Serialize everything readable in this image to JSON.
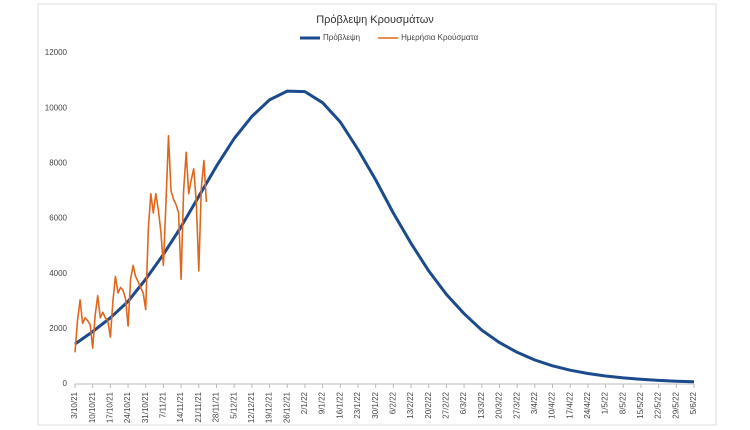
{
  "chart_data": {
    "type": "line",
    "title": "Πρόβλεψη Κρουσμάτων",
    "xlim": [
      "3/10/21",
      "5/6/22"
    ],
    "xticks": [
      "3/10/21",
      "10/10/21",
      "17/10/21",
      "24/10/21",
      "31/10/21",
      "7/11/21",
      "14/11/21",
      "21/11/21",
      "28/11/21",
      "5/12/21",
      "12/12/21",
      "19/12/21",
      "26/12/21",
      "2/1/22",
      "9/1/22",
      "16/1/22",
      "23/1/22",
      "30/1/22",
      "6/2/22",
      "13/2/22",
      "20/2/22",
      "27/2/22",
      "6/3/22",
      "13/3/22",
      "20/3/22",
      "27/3/22",
      "3/4/22",
      "10/4/22",
      "17/4/22",
      "24/4/22",
      "1/5/22",
      "8/5/22",
      "15/5/22",
      "22/5/22",
      "29/5/22",
      "5/6/22"
    ],
    "ylim": [
      0,
      12000
    ],
    "yticks": [
      0,
      2000,
      4000,
      6000,
      8000,
      10000,
      12000
    ],
    "grid": false,
    "legend": "top",
    "series": [
      {
        "name": "Πρόβλεψη",
        "color": "#1b4b8c",
        "width": 3,
        "x": [
          "3/10/21",
          "10/10/21",
          "17/10/21",
          "24/10/21",
          "31/10/21",
          "7/11/21",
          "14/11/21",
          "21/11/21",
          "28/11/21",
          "5/12/21",
          "12/12/21",
          "19/12/21",
          "26/12/21",
          "2/1/22",
          "9/1/22",
          "16/1/22",
          "23/1/22",
          "30/1/22",
          "6/2/22",
          "13/2/22",
          "20/2/22",
          "27/2/22",
          "6/3/22",
          "13/3/22",
          "20/3/22",
          "27/3/22",
          "3/4/22",
          "10/4/22",
          "17/4/22",
          "24/4/22",
          "1/5/22",
          "8/5/22",
          "15/5/22",
          "22/5/22",
          "29/5/22",
          "5/6/22"
        ],
        "values": [
          1450,
          1900,
          2400,
          3000,
          3800,
          4700,
          5700,
          6800,
          7900,
          8900,
          9700,
          10300,
          10620,
          10600,
          10200,
          9500,
          8500,
          7400,
          6200,
          5100,
          4100,
          3250,
          2550,
          1950,
          1500,
          1150,
          870,
          660,
          500,
          380,
          290,
          220,
          170,
          130,
          100,
          80
        ]
      },
      {
        "name": "Ημερήσια Κρούσματα",
        "color": "#e0661b",
        "width": 1.6,
        "x": [
          "3/10/21",
          "4/10/21",
          "5/10/21",
          "6/10/21",
          "7/10/21",
          "8/10/21",
          "9/10/21",
          "10/10/21",
          "11/10/21",
          "12/10/21",
          "13/10/21",
          "14/10/21",
          "15/10/21",
          "16/10/21",
          "17/10/21",
          "18/10/21",
          "19/10/21",
          "20/10/21",
          "21/10/21",
          "22/10/21",
          "23/10/21",
          "24/10/21",
          "25/10/21",
          "26/10/21",
          "27/10/21",
          "28/10/21",
          "29/10/21",
          "30/10/21",
          "31/10/21",
          "1/11/21",
          "2/11/21",
          "3/11/21",
          "4/11/21",
          "5/11/21",
          "6/11/21",
          "7/11/21",
          "8/11/21",
          "9/11/21",
          "10/11/21",
          "11/11/21",
          "12/11/21",
          "13/11/21",
          "14/11/21",
          "15/11/21",
          "16/11/21",
          "17/11/21",
          "18/11/21",
          "19/11/21",
          "20/11/21",
          "21/11/21",
          "22/11/21",
          "23/11/21",
          "24/11/21"
        ],
        "values": [
          1150,
          2300,
          3050,
          2200,
          2400,
          2300,
          2150,
          1300,
          2500,
          3200,
          2400,
          2600,
          2400,
          2300,
          1700,
          3000,
          3900,
          3300,
          3500,
          3400,
          3100,
          2100,
          3800,
          4300,
          3900,
          3700,
          3500,
          3300,
          2700,
          5600,
          6900,
          6200,
          6900,
          6300,
          5500,
          4300,
          6600,
          9000,
          7000,
          6700,
          6500,
          6200,
          3800,
          7000,
          8400,
          6900,
          7400,
          7800,
          6600,
          4100,
          7100,
          8100,
          6600
        ]
      }
    ]
  }
}
